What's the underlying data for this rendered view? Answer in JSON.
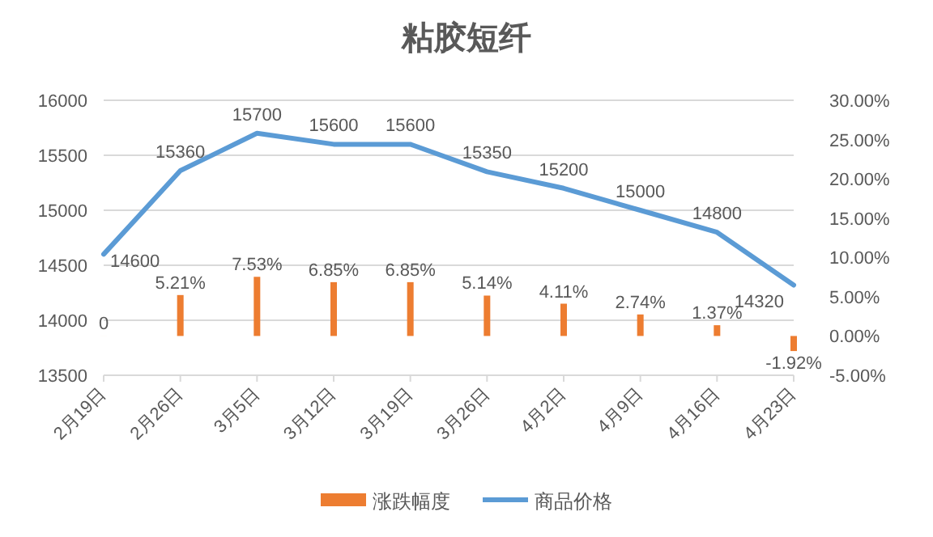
{
  "chart_data": {
    "type": "bar",
    "title": "粘胶短纤",
    "categories": [
      "2月19日",
      "2月26日",
      "3月5日",
      "3月12日",
      "3月19日",
      "3月26日",
      "4月2日",
      "4月9日",
      "4月16日",
      "4月23日"
    ],
    "series": [
      {
        "name": "涨跌幅度",
        "type": "bar",
        "axis": "y2",
        "color": "#ed7d31",
        "values": [
          0,
          5.21,
          7.53,
          6.85,
          6.85,
          5.14,
          4.11,
          2.74,
          1.37,
          -1.92
        ],
        "value_labels": [
          "0",
          "5.21%",
          "7.53%",
          "6.85%",
          "6.85%",
          "5.14%",
          "4.11%",
          "2.74%",
          "1.37%",
          "-1.92%"
        ]
      },
      {
        "name": "商品价格",
        "type": "line",
        "color": "#5b9bd5",
        "values": [
          14600,
          15360,
          15700,
          15600,
          15600,
          15350,
          15200,
          15000,
          14800,
          14320
        ],
        "data_labels": true
      }
    ],
    "ylim": [
      13500,
      16000
    ],
    "yticks": [
      13500,
      14000,
      14500,
      15000,
      15500,
      16000
    ],
    "y2lim": [
      -5,
      30
    ],
    "y2ticks": [
      {
        "value": -5,
        "label": "-5.00%"
      },
      {
        "value": 0,
        "label": "0.00%"
      },
      {
        "value": 5,
        "label": "5.00%"
      },
      {
        "value": 10,
        "label": "10.00%"
      },
      {
        "value": 15,
        "label": "15.00%"
      },
      {
        "value": 20,
        "label": "20.00%"
      },
      {
        "value": 25,
        "label": "25.00%"
      },
      {
        "value": 30,
        "label": "30.00%"
      }
    ],
    "grid": "y",
    "legend": "bottom"
  }
}
